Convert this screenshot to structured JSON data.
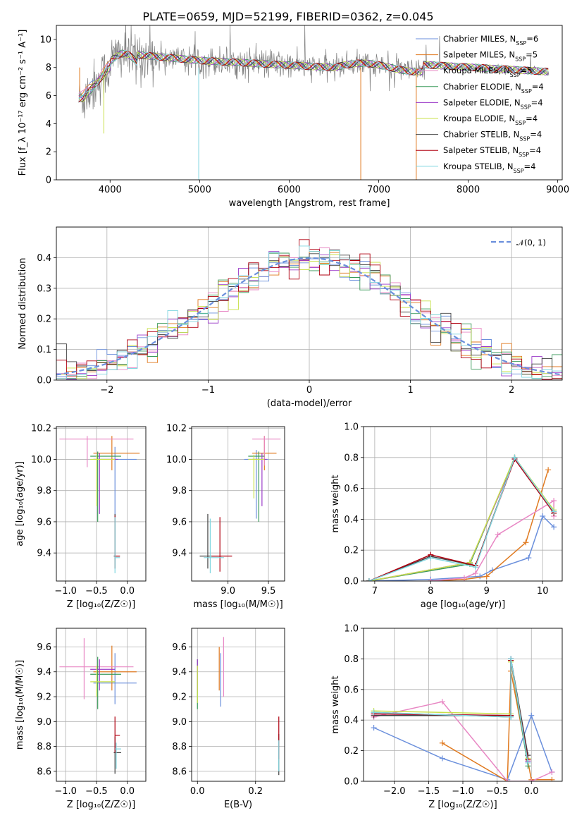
{
  "chart_data": [
    {
      "id": "spectrum",
      "type": "line",
      "title": "PLATE=0659, MJD=52199, FIBERID=0362, z=0.045",
      "xlabel": "wavelength [Angstrom, rest frame]",
      "ylabel": "Flux [f_λ 10⁻¹⁷ erg cm⁻² s⁻¹ A⁻¹]",
      "xlim": [
        3400,
        9050
      ],
      "ylim": [
        0,
        11
      ],
      "xticks": [
        4000,
        5000,
        6000,
        7000,
        8000,
        9000
      ],
      "yticks": [
        0,
        2,
        4,
        6,
        8,
        10
      ],
      "grid": false,
      "legend_position": "top-right",
      "data_series": {
        "name": "",
        "color": "#808080",
        "x_range": [
          3650,
          8900
        ],
        "mean_level": 8
      }
    },
    {
      "id": "residuals",
      "type": "line",
      "xlabel": "(data-model)/error",
      "ylabel": "Normed distribution",
      "xlim": [
        -2.5,
        2.5
      ],
      "ylim": [
        0,
        0.5
      ],
      "xticks": [
        -2,
        -1,
        0,
        1,
        2
      ],
      "yticks": [
        0.0,
        0.1,
        0.2,
        0.3,
        0.4
      ],
      "grid": true,
      "legend": "𝒩(0, 1)",
      "legend_position": "top-right",
      "reference_curve": {
        "name": "𝒩(0, 1)",
        "mean": 0,
        "sigma": 1,
        "color": "#6a8fdc"
      }
    },
    {
      "id": "age-vs-Z",
      "type": "scatter",
      "xlabel": "Z [log₁₀(Z/Z☉)]",
      "ylabel": "age  [log₁₀(age/yr)]",
      "xlim": [
        -1.15,
        0.3
      ],
      "ylim": [
        9.22,
        10.21
      ],
      "xticks": [
        -1.0,
        -0.5,
        0.0
      ],
      "yticks": [
        9.4,
        9.6,
        9.8,
        10.0,
        10.2
      ],
      "grid": true
    },
    {
      "id": "age-vs-mass",
      "type": "scatter",
      "xlabel": "mass [log₁₀(M/M☉)]",
      "ylabel": "",
      "xlim": [
        8.55,
        9.7
      ],
      "ylim": [
        9.22,
        10.21
      ],
      "xticks": [
        9.0,
        9.5
      ],
      "yticks": [
        9.4,
        9.6,
        9.8,
        10.0,
        10.2
      ],
      "grid": true
    },
    {
      "id": "massweight-vs-age",
      "type": "line",
      "xlabel": "age  [log₁₀(age/yr)]",
      "ylabel": "mass weight",
      "xlim": [
        6.8,
        10.35
      ],
      "ylim": [
        0,
        1
      ],
      "xticks": [
        7,
        8,
        9,
        10
      ],
      "yticks": [
        0.0,
        0.2,
        0.4,
        0.6,
        0.8,
        1.0
      ],
      "grid": true
    },
    {
      "id": "mass-vs-Z",
      "type": "scatter",
      "xlabel": "Z [log₁₀(Z/Z☉)]",
      "ylabel": "mass [log₁₀(M/M☉)]",
      "xlim": [
        -1.15,
        0.3
      ],
      "ylim": [
        8.52,
        9.75
      ],
      "xticks": [
        -1.0,
        -0.5,
        0.0
      ],
      "yticks": [
        8.6,
        8.8,
        9.0,
        9.2,
        9.4,
        9.6
      ],
      "grid": true
    },
    {
      "id": "mass-vs-ebv",
      "type": "scatter",
      "xlabel": "E(B-V)",
      "ylabel": "",
      "xlim": [
        -0.02,
        0.3
      ],
      "ylim": [
        8.52,
        9.75
      ],
      "xticks": [
        0.0,
        0.2
      ],
      "yticks": [
        8.6,
        8.8,
        9.0,
        9.2,
        9.4,
        9.6
      ],
      "grid": true
    },
    {
      "id": "massweight-vs-Z",
      "type": "line",
      "xlabel": "Z [log₁₀(Z/Z☉)]",
      "ylabel": "mass weight",
      "xlim": [
        -2.45,
        0.45
      ],
      "ylim": [
        0,
        1
      ],
      "xticks": [
        -2.0,
        -1.5,
        -1.0,
        -0.5,
        0.0
      ],
      "yticks": [
        0.0,
        0.2,
        0.4,
        0.6,
        0.8,
        1.0
      ],
      "grid": true
    }
  ],
  "models": [
    {
      "name": "Chabrier MILES",
      "nssp": "6",
      "color": "#6a8fdc",
      "age": 9.99,
      "Z": -0.2,
      "mass": 9.31,
      "ebv": 0.08,
      "ageZ": {
        "x": -0.2,
        "y": 10.0,
        "xe": [
          -0.55,
          0.15
        ],
        "ye": [
          9.6,
          10.08
        ]
      },
      "ageM": {
        "x": 9.35,
        "y": 10.0,
        "xe": [
          9.2,
          9.5
        ],
        "ye": [
          9.62,
          10.06
        ]
      },
      "massZ": {
        "x": -0.2,
        "y": 9.31,
        "xe": [
          -0.55,
          0.15
        ],
        "ye": [
          9.14,
          9.55
        ]
      },
      "massE": {
        "x": 0.08,
        "y": 9.32,
        "ye": [
          9.12,
          9.55
        ]
      },
      "wAge": [
        [
          6.9,
          0.0
        ],
        [
          8.0,
          0.01
        ],
        [
          8.88,
          0.03
        ],
        [
          9.1,
          0.07
        ],
        [
          9.75,
          0.15
        ],
        [
          10.0,
          0.42
        ],
        [
          10.2,
          0.35
        ]
      ],
      "wZ": [
        [
          -2.3,
          0.35
        ],
        [
          -1.3,
          0.15
        ],
        [
          -0.35,
          0.01
        ],
        [
          0.0,
          0.43
        ],
        [
          0.3,
          0.06
        ]
      ]
    },
    {
      "name": "Salpeter MILES",
      "nssp": "5",
      "color": "#e07a20",
      "age": 10.04,
      "Z": -0.25,
      "mass": 9.4,
      "ebv": 0.07,
      "wAge": [
        [
          8.0,
          0.0
        ],
        [
          8.6,
          0.01
        ],
        [
          9.0,
          0.03
        ],
        [
          9.7,
          0.25
        ],
        [
          10.1,
          0.72
        ]
      ],
      "wZ": [
        [
          -1.3,
          0.25
        ],
        [
          -0.35,
          0.0
        ],
        [
          -0.3,
          0.72
        ],
        [
          0.0,
          0.01
        ],
        [
          0.3,
          0.01
        ]
      ]
    },
    {
      "name": "Kroupa MILES",
      "nssp": "5",
      "color": "#e887c4",
      "age": 10.13,
      "Z": -0.7,
      "mass": 9.44,
      "ebv": 0.09,
      "wAge": [
        [
          8.0,
          0.0
        ],
        [
          8.6,
          0.02
        ],
        [
          8.8,
          0.05
        ],
        [
          9.2,
          0.3
        ],
        [
          10.2,
          0.52
        ],
        [
          10.2,
          0.42
        ]
      ],
      "wZ": [
        [
          -2.3,
          0.42
        ],
        [
          -1.3,
          0.52
        ],
        [
          -0.35,
          0.0
        ],
        [
          0.0,
          0.0
        ],
        [
          0.3,
          0.06
        ]
      ]
    },
    {
      "name": "Chabrier ELODIE",
      "nssp": "4",
      "color": "#3a9a5a",
      "age": 10.02,
      "Z": -0.48,
      "mass": 9.38,
      "ebv": 0.0,
      "wAge": [
        [
          6.9,
          0.0
        ],
        [
          8.7,
          0.11
        ],
        [
          9.5,
          0.8
        ],
        [
          10.2,
          0.44
        ]
      ],
      "wZ": [
        [
          -2.3,
          0.45
        ],
        [
          -0.3,
          0.42
        ],
        [
          -0.3,
          0.79
        ],
        [
          -0.05,
          0.1
        ]
      ]
    },
    {
      "name": "Salpeter ELODIE",
      "nssp": "4",
      "color": "#9b3ac8",
      "age": 10.0,
      "Z": -0.45,
      "mass": 9.42,
      "ebv": 0.0,
      "wAge": [
        [
          6.9,
          0.0
        ],
        [
          8.7,
          0.12
        ],
        [
          9.5,
          0.79
        ],
        [
          10.2,
          0.45
        ]
      ],
      "wZ": [
        [
          -2.3,
          0.44
        ],
        [
          -0.3,
          0.43
        ],
        [
          -0.3,
          0.8
        ],
        [
          -0.05,
          0.13
        ]
      ]
    },
    {
      "name": "Kroupa ELODIE",
      "nssp": "4",
      "color": "#c8e04a",
      "age": 10.0,
      "Z": -0.5,
      "mass": 9.32,
      "ebv": 0.0,
      "wAge": [
        [
          6.9,
          0.0
        ],
        [
          8.7,
          0.12
        ],
        [
          9.5,
          0.8
        ],
        [
          10.2,
          0.46
        ]
      ],
      "wZ": [
        [
          -2.3,
          0.46
        ],
        [
          -0.3,
          0.44
        ],
        [
          -0.3,
          0.78
        ],
        [
          -0.05,
          0.15
        ]
      ]
    },
    {
      "name": "Chabrier STELIB",
      "nssp": "4",
      "color": "#404040",
      "age": 9.38,
      "Z": -0.2,
      "mass": 8.75,
      "ebv": 0.28,
      "wAge": [
        [
          6.9,
          0.0
        ],
        [
          8.0,
          0.16
        ],
        [
          8.8,
          0.1
        ],
        [
          9.5,
          0.8
        ],
        [
          10.2,
          0.44
        ]
      ],
      "wZ": [
        [
          -2.3,
          0.43
        ],
        [
          -0.3,
          0.43
        ],
        [
          -0.3,
          0.8
        ],
        [
          -0.05,
          0.17
        ]
      ]
    },
    {
      "name": "Salpeter STELIB",
      "nssp": "4",
      "color": "#b00010",
      "age": 9.38,
      "Z": -0.2,
      "mass": 8.9,
      "ebv": 0.28,
      "wAge": [
        [
          6.9,
          0.0
        ],
        [
          8.0,
          0.17
        ],
        [
          8.8,
          0.1
        ],
        [
          9.5,
          0.79
        ],
        [
          10.2,
          0.44
        ]
      ],
      "wZ": [
        [
          -2.3,
          0.44
        ],
        [
          -0.3,
          0.43
        ],
        [
          -0.3,
          0.79
        ],
        [
          -0.05,
          0.14
        ]
      ]
    },
    {
      "name": "Kroupa STELIB",
      "nssp": "4",
      "color": "#7fd6e0",
      "age": 9.38,
      "Z": -0.18,
      "mass": 8.78,
      "ebv": 0.28,
      "wAge": [
        [
          6.9,
          0.0
        ],
        [
          8.0,
          0.15
        ],
        [
          8.8,
          0.09
        ],
        [
          9.5,
          0.8
        ],
        [
          10.2,
          0.45
        ]
      ],
      "wZ": [
        [
          -2.3,
          0.45
        ],
        [
          -0.3,
          0.42
        ],
        [
          -0.3,
          0.8
        ],
        [
          -0.05,
          0.12
        ]
      ]
    }
  ]
}
